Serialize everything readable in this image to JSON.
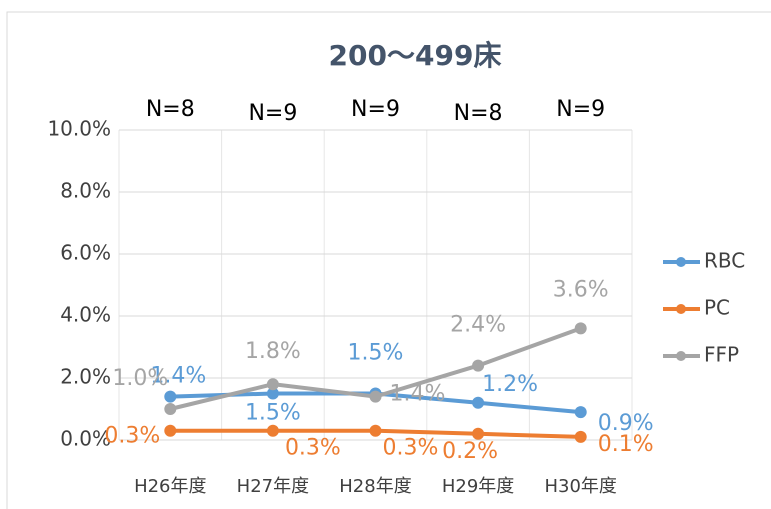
{
  "chart_data": {
    "type": "line",
    "title": "200～499床",
    "categories": [
      "H26年度",
      "H27年度",
      "H28年度",
      "H29年度",
      "H30年度"
    ],
    "annotations": [
      "N=8",
      "N=9",
      "N=9",
      "N=8",
      "N=9"
    ],
    "series": [
      {
        "name": "RBC",
        "color": "#5b9bd5",
        "values": [
          1.4,
          1.5,
          1.5,
          1.2,
          0.9
        ],
        "value_labels": [
          "1.4%",
          "1.5%",
          "1.5%",
          "1.2%",
          "0.9%"
        ]
      },
      {
        "name": "PC",
        "color": "#ed7d31",
        "values": [
          0.3,
          0.3,
          0.3,
          0.2,
          0.1
        ],
        "value_labels": [
          "0.3%",
          "0.3%",
          "0.3%",
          "0.2%",
          "0.1%"
        ]
      },
      {
        "name": "FFP",
        "color": "#a5a5a5",
        "values": [
          1.0,
          1.8,
          1.4,
          2.4,
          3.6
        ],
        "value_labels": [
          "1.0%",
          "1.8%",
          "1.4%",
          "2.4%",
          "3.6%"
        ]
      }
    ],
    "ylim": [
      0,
      10
    ],
    "yticks": [
      {
        "value": 0,
        "label": "0.0%"
      },
      {
        "value": 2,
        "label": "2.0%"
      },
      {
        "value": 4,
        "label": "4.0%"
      },
      {
        "value": 6,
        "label": "6.0%"
      },
      {
        "value": 8,
        "label": "8.0%"
      },
      {
        "value": 10,
        "label": "10.0%"
      }
    ],
    "grid": true,
    "legend": "right"
  }
}
